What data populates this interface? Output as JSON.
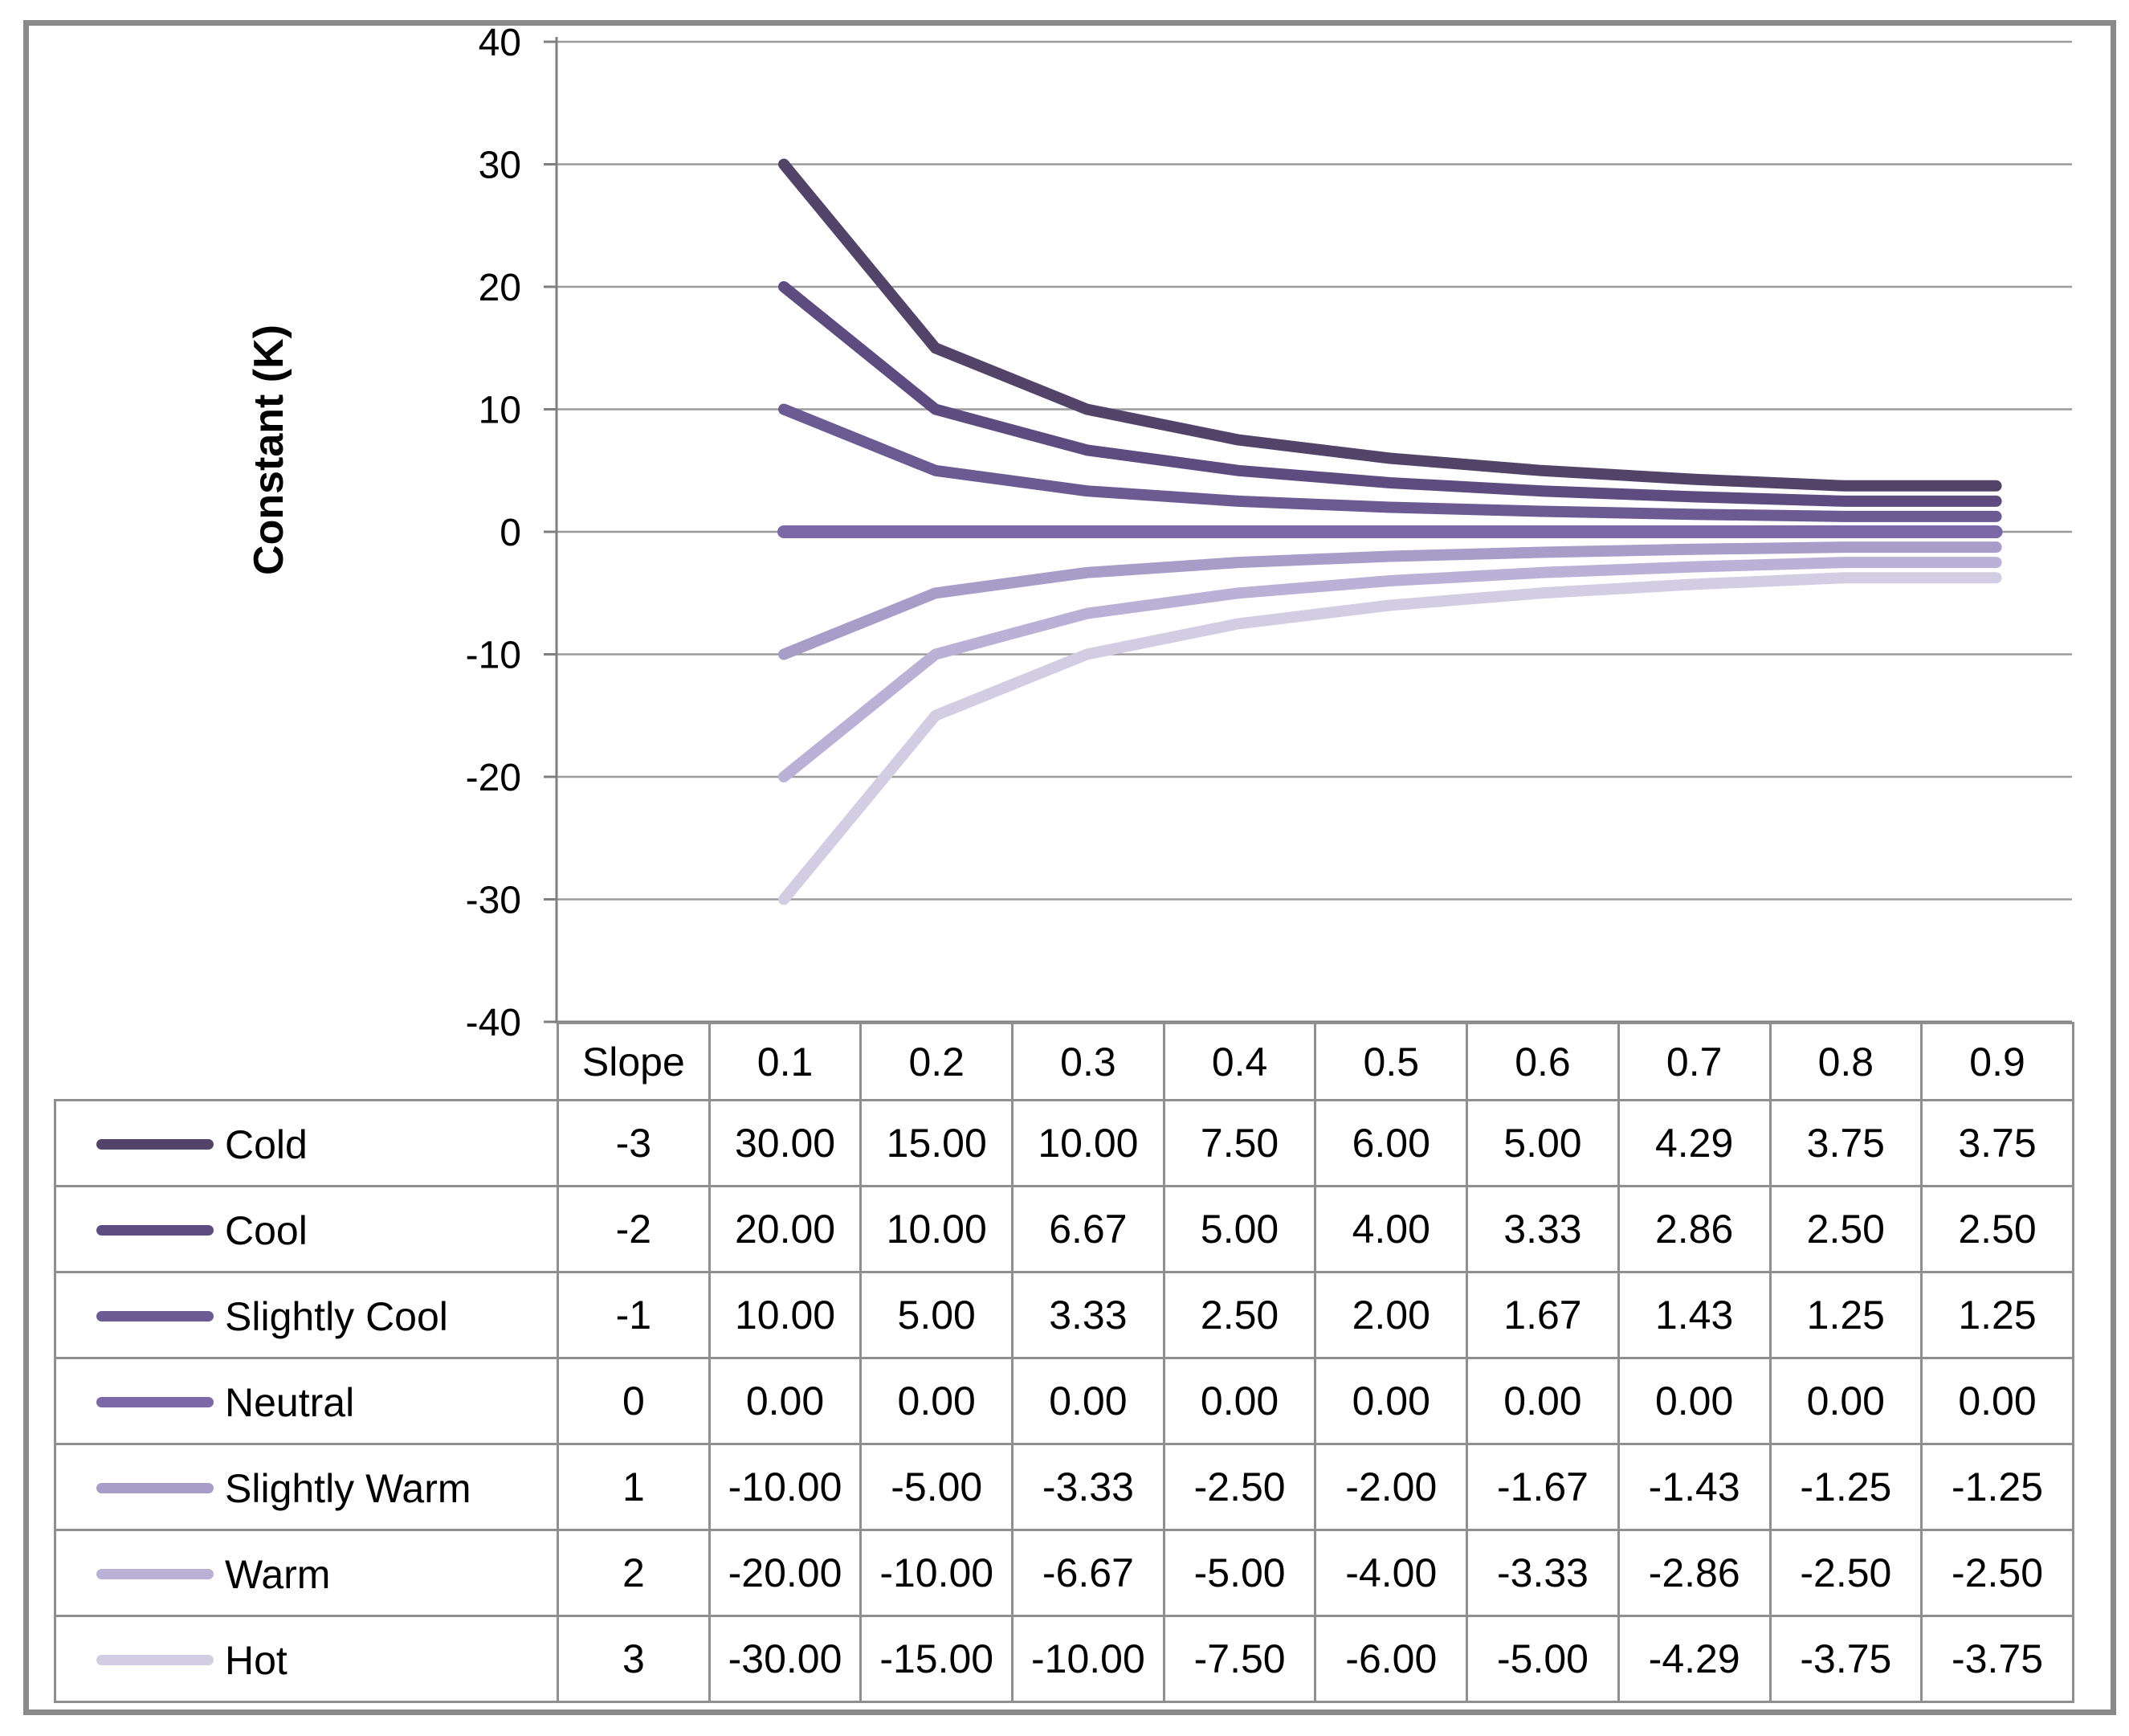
{
  "chart": {
    "y_axis_title": "Constant (K)",
    "y_ticks": [
      40,
      30,
      20,
      10,
      0,
      -10,
      -20,
      -30,
      -40
    ],
    "colors": {
      "gridline": "#9b9b9b",
      "axis": "#7f7f7f",
      "table_border": "#8f8f8f",
      "frame_border": "#8a8a8a",
      "text": "#000000"
    }
  },
  "chart_data": {
    "type": "line",
    "x": [
      0.1,
      0.2,
      0.3,
      0.4,
      0.5,
      0.6,
      0.7,
      0.8,
      0.9
    ],
    "series": [
      {
        "name": "Cold",
        "slope": -3,
        "color": "#534369",
        "values": [
          30.0,
          15.0,
          10.0,
          7.5,
          6.0,
          5.0,
          4.29,
          3.75,
          3.75
        ]
      },
      {
        "name": "Cool",
        "slope": -2,
        "color": "#5e4b80",
        "values": [
          20.0,
          10.0,
          6.67,
          5.0,
          4.0,
          3.33,
          2.86,
          2.5,
          2.5
        ]
      },
      {
        "name": "Slightly Cool",
        "slope": -1,
        "color": "#6c5a93",
        "values": [
          10.0,
          5.0,
          3.33,
          2.5,
          2.0,
          1.67,
          1.43,
          1.25,
          1.25
        ]
      },
      {
        "name": "Neutral",
        "slope": 0,
        "color": "#7c67a7",
        "values": [
          0.0,
          0.0,
          0.0,
          0.0,
          0.0,
          0.0,
          0.0,
          0.0,
          0.0
        ]
      },
      {
        "name": "Slightly Warm",
        "slope": 1,
        "color": "#a89cc9",
        "values": [
          -10.0,
          -5.0,
          -3.33,
          -2.5,
          -2.0,
          -1.67,
          -1.43,
          -1.25,
          -1.25
        ]
      },
      {
        "name": "Warm",
        "slope": 2,
        "color": "#bbb0d5",
        "values": [
          -20.0,
          -10.0,
          -6.67,
          -5.0,
          -4.0,
          -3.33,
          -2.86,
          -2.5,
          -2.5
        ]
      },
      {
        "name": "Hot",
        "slope": 3,
        "color": "#d3cde3",
        "values": [
          -30.0,
          -15.0,
          -10.0,
          -7.5,
          -6.0,
          -5.0,
          -4.29,
          -3.75,
          -3.75
        ]
      }
    ],
    "title": "",
    "xlabel": "",
    "ylabel": "Constant (K)",
    "ylim": [
      -40,
      40
    ],
    "grid": true,
    "legend_position": "table-left"
  },
  "table": {
    "slope_header": "Slope",
    "col_headers": [
      "0.1",
      "0.2",
      "0.3",
      "0.4",
      "0.5",
      "0.6",
      "0.7",
      "0.8",
      "0.9"
    ],
    "rows": [
      {
        "label": "Cold",
        "slope": "-3",
        "values": [
          "30.00",
          "15.00",
          "10.00",
          "7.50",
          "6.00",
          "5.00",
          "4.29",
          "3.75",
          "3.75"
        ]
      },
      {
        "label": "Cool",
        "slope": "-2",
        "values": [
          "20.00",
          "10.00",
          "6.67",
          "5.00",
          "4.00",
          "3.33",
          "2.86",
          "2.50",
          "2.50"
        ]
      },
      {
        "label": "Slightly Cool",
        "slope": "-1",
        "values": [
          "10.00",
          "5.00",
          "3.33",
          "2.50",
          "2.00",
          "1.67",
          "1.43",
          "1.25",
          "1.25"
        ]
      },
      {
        "label": "Neutral",
        "slope": "0",
        "values": [
          "0.00",
          "0.00",
          "0.00",
          "0.00",
          "0.00",
          "0.00",
          "0.00",
          "0.00",
          "0.00"
        ]
      },
      {
        "label": "Slightly Warm",
        "slope": "1",
        "values": [
          "-10.00",
          "-5.00",
          "-3.33",
          "-2.50",
          "-2.00",
          "-1.67",
          "-1.43",
          "-1.25",
          "-1.25"
        ]
      },
      {
        "label": "Warm",
        "slope": "2",
        "values": [
          "-20.00",
          "-10.00",
          "-6.67",
          "-5.00",
          "-4.00",
          "-3.33",
          "-2.86",
          "-2.50",
          "-2.50"
        ]
      },
      {
        "label": "Hot",
        "slope": "3",
        "values": [
          "-30.00",
          "-15.00",
          "-10.00",
          "-7.50",
          "-6.00",
          "-5.00",
          "-4.29",
          "-3.75",
          "-3.75"
        ]
      }
    ]
  }
}
